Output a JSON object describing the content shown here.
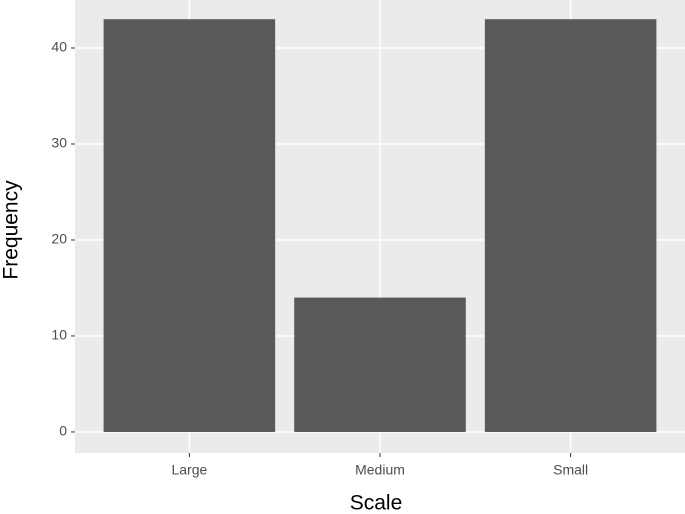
{
  "chart_data": {
    "type": "bar",
    "x_label": "Scale",
    "y_label": "Frequency",
    "categories": [
      "Large",
      "Medium",
      "Small"
    ],
    "values": [
      43,
      14,
      43
    ],
    "color": "#595959",
    "ylim": [
      -2.19,
      45
    ],
    "yticks": [
      0,
      10,
      20,
      30,
      40
    ],
    "grid": true
  }
}
